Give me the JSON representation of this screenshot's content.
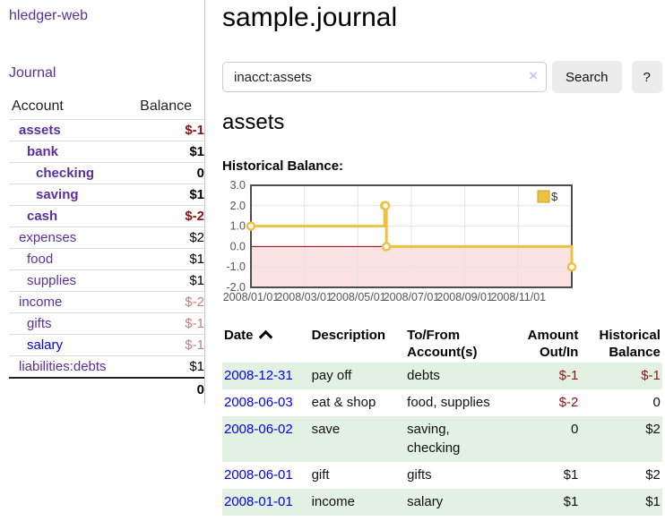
{
  "app": {
    "title": "hledger-web"
  },
  "sidebar": {
    "journal_label": "Journal",
    "headers": {
      "account": "Account",
      "balance": "Balance"
    },
    "accounts": [
      {
        "name": "assets",
        "balance": "$-1"
      },
      {
        "name": "bank",
        "balance": "$1"
      },
      {
        "name": "checking",
        "balance": "0"
      },
      {
        "name": "saving",
        "balance": "$1"
      },
      {
        "name": "cash",
        "balance": "$-2"
      },
      {
        "name": "expenses",
        "balance": "$2"
      },
      {
        "name": "food",
        "balance": "$1"
      },
      {
        "name": "supplies",
        "balance": "$1"
      },
      {
        "name": "income",
        "balance": "$-2"
      },
      {
        "name": "gifts",
        "balance": "$-1"
      },
      {
        "name": "salary",
        "balance": "$-1"
      },
      {
        "name": "liabilities:debts",
        "balance": "$1"
      }
    ],
    "total": "0"
  },
  "main": {
    "title": "sample.journal",
    "search": {
      "value": "inacct:assets",
      "button_label": "Search",
      "help_label": "?"
    },
    "account_heading": "assets",
    "chart_label": "Historical Balance:"
  },
  "icons": {
    "clear_search": "×",
    "sort_asc": "chevron-up"
  },
  "colors": {
    "accent_purple": "#5c2e9e",
    "link_blue": "#0000ee",
    "negative_strong": "#8e1313",
    "negative_soft": "#c27f7f",
    "row_stripe_green": "#e2f1e2",
    "series_gold": "#EDC240"
  },
  "chart_data": {
    "type": "line",
    "step": true,
    "title": "Historical Balance:",
    "series": [
      {
        "name": "$",
        "color": "#EDC240",
        "points": [
          [
            "2008-01-01",
            1
          ],
          [
            "2008-06-01",
            2
          ],
          [
            "2008-06-02",
            2
          ],
          [
            "2008-06-03",
            0
          ],
          [
            "2008-12-31",
            -1
          ]
        ]
      }
    ],
    "ylim": [
      -2,
      3
    ],
    "yticks": [
      3,
      2,
      1,
      0,
      -1,
      -2
    ],
    "xticks": [
      "2008/01/01",
      "2008/03/01",
      "2008/05/01",
      "2008/07/01",
      "2008/09/01",
      "2008/11/01"
    ],
    "grid": true,
    "legend_position": "top-right",
    "negative_region_fill": "#fbe3e3",
    "zero_line_color": "#8b0000"
  },
  "register": {
    "headers": {
      "date": "Date",
      "description": "Description",
      "account": "To/From Account(s)",
      "amount": "Amount Out/In",
      "balance": "Historical Balance"
    },
    "rows": [
      {
        "date": "2008-12-31",
        "description": "pay off",
        "accounts": "debts",
        "amount": "$-1",
        "balance": "$-1"
      },
      {
        "date": "2008-06-03",
        "description": "eat & shop",
        "accounts": "food, supplies",
        "amount": "$-2",
        "balance": "0"
      },
      {
        "date": "2008-06-02",
        "description": "save",
        "accounts": "saving, checking",
        "amount": "0",
        "balance": "$2"
      },
      {
        "date": "2008-06-01",
        "description": "gift",
        "accounts": "gifts",
        "amount": "$1",
        "balance": "$2"
      },
      {
        "date": "2008-01-01",
        "description": "income",
        "accounts": "salary",
        "amount": "$1",
        "balance": "$1"
      }
    ]
  }
}
